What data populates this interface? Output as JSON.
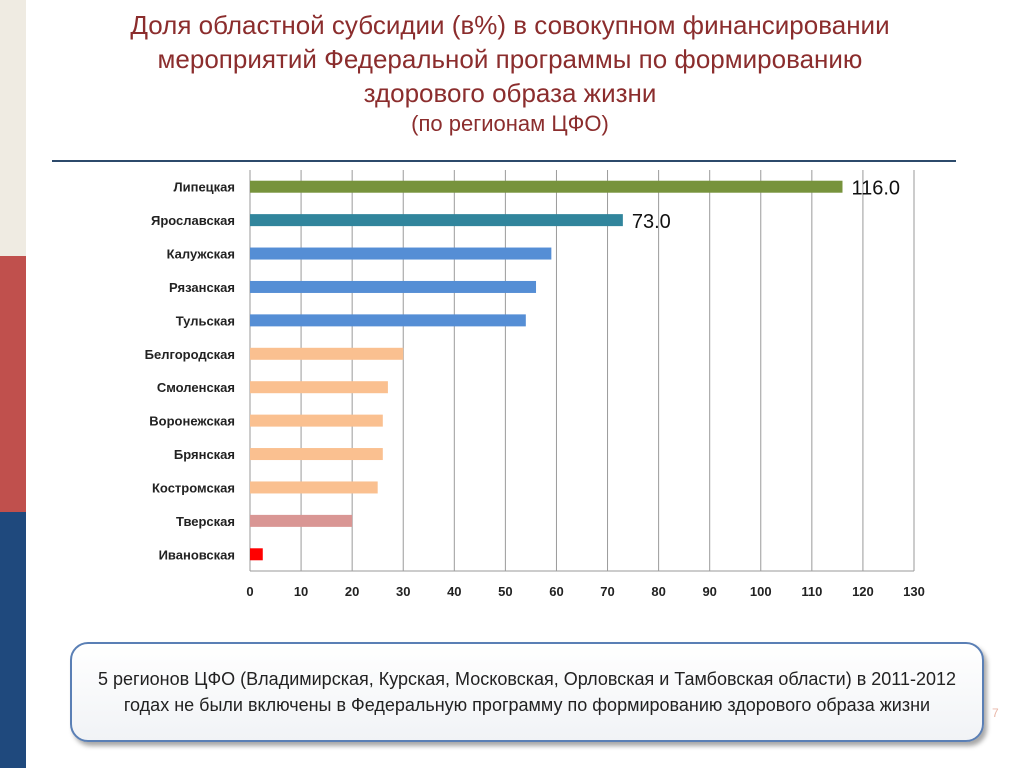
{
  "slide": {
    "title_lines": [
      "Доля областной субсидии (в%) в совокупном финансировании",
      "мероприятий Федеральной программы по формированию",
      "здорового образа жизни"
    ],
    "subtitle": "(по регионам ЦФО)",
    "note": "5 регионов ЦФО (Владимирская, Курская, Московская, Орловская и Тамбовская области) в 2011-2012 годах не были включены в Федеральную программу по формированию здорового образа жизни",
    "page_number": "7",
    "colors": {
      "title": "#8b2d2d",
      "strip_cream": "#efebe2",
      "strip_red": "#c0504d",
      "strip_blue": "#1f497d",
      "note_border": "#5a7fb5"
    }
  },
  "chart_data": {
    "type": "bar",
    "orientation": "horizontal",
    "categories": [
      "Липецкая",
      "Ярославская",
      "Калужская",
      "Рязанская",
      "Тульская",
      "Белгородская",
      "Смоленская",
      "Воронежская",
      "Брянская",
      "Костромская",
      "Тверская",
      "Ивановская"
    ],
    "values": [
      116,
      73,
      59,
      56,
      54,
      30,
      27,
      26,
      26,
      25,
      20,
      2.5
    ],
    "bar_colors": [
      "#77933c",
      "#31859c",
      "#558ed5",
      "#558ed5",
      "#558ed5",
      "#fac090",
      "#fac090",
      "#fac090",
      "#fac090",
      "#fac090",
      "#d99694",
      "#ff0000"
    ],
    "data_labels": [
      {
        "index": 0,
        "text": "116.0"
      },
      {
        "index": 1,
        "text": "73.0"
      }
    ],
    "xlim": [
      0,
      130
    ],
    "x_ticks": [
      0,
      10,
      20,
      30,
      40,
      50,
      60,
      70,
      80,
      90,
      100,
      110,
      120,
      130
    ],
    "grid": true,
    "legend": false
  }
}
